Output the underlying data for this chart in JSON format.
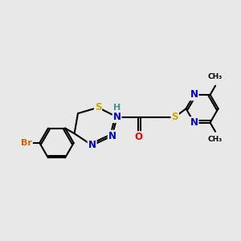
{
  "bg_color": "#e8e8e8",
  "bond_color": "#000000",
  "bond_width": 1.5,
  "atom_colors": {
    "N": "#0000cc",
    "S": "#ccaa00",
    "O": "#ff0000",
    "Br": "#cc6600",
    "C": "#000000",
    "H": "#4a9090"
  },
  "font_size": 8.5,
  "fig_width": 3.0,
  "fig_height": 3.0,
  "xlim": [
    0,
    10
  ],
  "ylim": [
    0,
    10
  ]
}
